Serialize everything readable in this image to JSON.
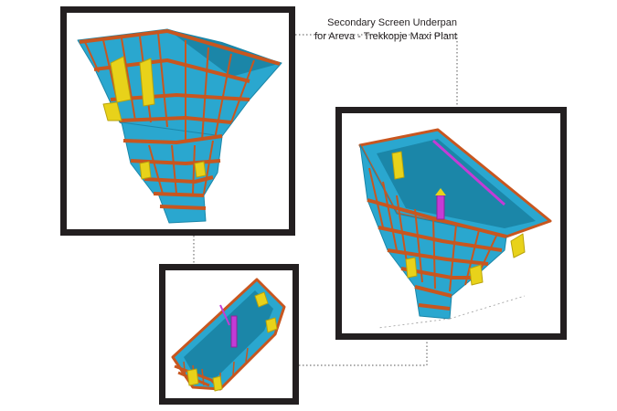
{
  "caption": {
    "line1": "Secondary Screen Underpan",
    "line2": "for Areva - Trekkopje Maxi Plant"
  },
  "views": [
    {
      "name": "side-elevation-view"
    },
    {
      "name": "top-perspective-view"
    },
    {
      "name": "open-top-view"
    }
  ],
  "colors": {
    "plate": "#2aa7cf",
    "plate_dark": "#1b86a8",
    "frame": "#c8561f",
    "gusset": "#e8d21a",
    "column": "#c43bd6",
    "border": "#231f20"
  }
}
